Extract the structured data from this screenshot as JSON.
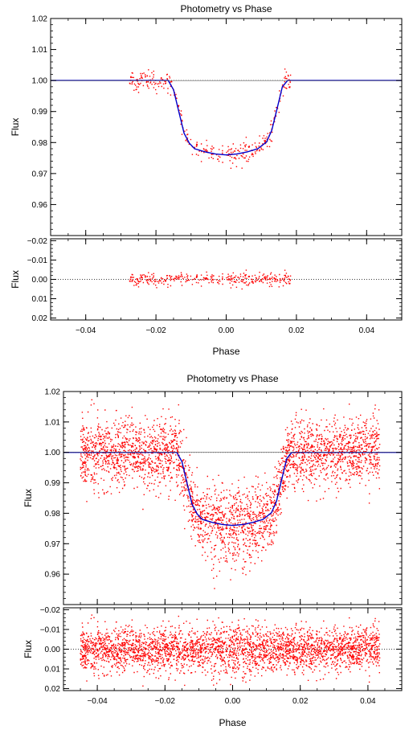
{
  "chart_data": [
    {
      "type": "scatter",
      "title": "Photometry vs Phase",
      "xlabel": "Phase",
      "xlim": [
        -0.05,
        0.05
      ],
      "x_ticks": [
        -0.04,
        -0.02,
        0.0,
        0.02,
        0.04
      ],
      "x_tick_labels": [
        "−0.04",
        "−0.02",
        "0.00",
        "0.02",
        "0.04"
      ],
      "grid": false,
      "colors": {
        "points": "#ff0000",
        "model": "#0000cc",
        "baseline": "#000000"
      },
      "panels": [
        {
          "role": "flux",
          "ylabel": "Flux",
          "ylim": [
            0.95,
            1.02
          ],
          "y_ticks": [
            0.96,
            0.97,
            0.98,
            0.99,
            1.0,
            1.01,
            1.02
          ],
          "y_tick_labels": [
            "0.96",
            "0.97",
            "0.98",
            "0.99",
            "1.00",
            "1.01",
            "1.02"
          ],
          "baseline": 1.0,
          "model": {
            "x": [
              -0.05,
              -0.0165,
              -0.015,
              -0.0135,
              -0.012,
              -0.0105,
              -0.009,
              -0.006,
              -0.003,
              0.0,
              0.003,
              0.006,
              0.009,
              0.0115,
              0.013,
              0.0145,
              0.016,
              0.0175,
              0.05
            ],
            "y": [
              1.0,
              1.0,
              0.997,
              0.99,
              0.983,
              0.9798,
              0.978,
              0.977,
              0.9763,
              0.976,
              0.9763,
              0.977,
              0.978,
              0.9802,
              0.984,
              0.991,
              0.998,
              1.0,
              1.0
            ]
          },
          "points": {
            "x_range": [
              -0.0275,
              0.0185
            ],
            "count": 340,
            "scatter_sigma": 0.0017
          }
        },
        {
          "role": "residuals",
          "ylabel": "Flux",
          "ylim": [
            0.021,
            -0.021
          ],
          "y_ticks": [
            -0.02,
            -0.01,
            0.0,
            0.01,
            0.02
          ],
          "y_tick_labels": [
            "−0.02",
            "−0.01",
            "0.00",
            "0.01",
            "0.02"
          ],
          "baseline": 0.0,
          "points": {
            "x_range": [
              -0.0275,
              0.0185
            ],
            "count": 340,
            "scatter_sigma": 0.0017
          }
        }
      ]
    },
    {
      "type": "scatter",
      "title": "Photometry vs Phase",
      "xlabel": "Phase",
      "xlim": [
        -0.05,
        0.05
      ],
      "x_ticks": [
        -0.04,
        -0.02,
        0.0,
        0.02,
        0.04
      ],
      "x_tick_labels": [
        "−0.04",
        "−0.02",
        "0.00",
        "0.02",
        "0.04"
      ],
      "grid": false,
      "colors": {
        "points": "#ff0000",
        "model": "#0000cc",
        "baseline": "#000000"
      },
      "panels": [
        {
          "role": "flux",
          "ylabel": "Flux",
          "ylim": [
            0.95,
            1.02
          ],
          "y_ticks": [
            0.96,
            0.97,
            0.98,
            0.99,
            1.0,
            1.01,
            1.02
          ],
          "y_tick_labels": [
            "0.96",
            "0.97",
            "0.98",
            "0.99",
            "1.00",
            "1.01",
            "1.02"
          ],
          "baseline": 1.0,
          "model": {
            "x": [
              -0.05,
              -0.0165,
              -0.015,
              -0.0135,
              -0.012,
              -0.0105,
              -0.009,
              -0.006,
              -0.003,
              0.0,
              0.003,
              0.006,
              0.009,
              0.0115,
              0.013,
              0.0145,
              0.016,
              0.0175,
              0.05
            ],
            "y": [
              1.0,
              1.0,
              0.997,
              0.99,
              0.983,
              0.9798,
              0.978,
              0.977,
              0.9763,
              0.976,
              0.9763,
              0.977,
              0.978,
              0.9802,
              0.984,
              0.991,
              0.998,
              1.0,
              1.0
            ]
          },
          "points": {
            "x_range": [
              -0.045,
              0.0435
            ],
            "count": 3200,
            "scatter_sigma": 0.0055
          }
        },
        {
          "role": "residuals",
          "ylabel": "Flux",
          "ylim": [
            0.021,
            -0.021
          ],
          "y_ticks": [
            -0.02,
            -0.01,
            0.0,
            0.01,
            0.02
          ],
          "y_tick_labels": [
            "−0.02",
            "−0.01",
            "0.00",
            "0.01",
            "0.02"
          ],
          "baseline": 0.0,
          "points": {
            "x_range": [
              -0.045,
              0.0435
            ],
            "count": 3200,
            "scatter_sigma": 0.0055
          }
        }
      ]
    }
  ]
}
